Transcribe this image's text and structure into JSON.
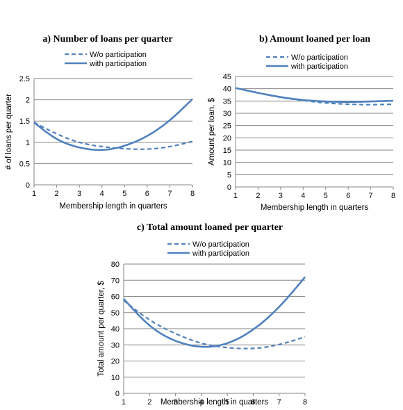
{
  "chart_data": [
    {
      "type": "line",
      "title": "a) Number of loans per quarter",
      "xlabel": "Membership length in quarters",
      "ylabel": "# of loans per quarter",
      "xlim": [
        1,
        8
      ],
      "ylim": [
        0,
        2.5
      ],
      "yticks": [
        "0",
        "0.5",
        "1",
        "1.5",
        "2",
        "2.5"
      ],
      "xticks": [
        "1",
        "2",
        "3",
        "4",
        "5",
        "6",
        "7",
        "8"
      ],
      "grid": true,
      "legend_position": "top",
      "color": "#4f81bd",
      "x": [
        1,
        2,
        3,
        4,
        5,
        6,
        7,
        8
      ],
      "series": [
        {
          "name": "W/o participation",
          "style": "dashed",
          "values": [
            1.47,
            1.2,
            1.0,
            0.9,
            0.85,
            0.84,
            0.9,
            1.02
          ]
        },
        {
          "name": "with participation",
          "style": "solid",
          "values": [
            1.47,
            1.08,
            0.88,
            0.82,
            0.92,
            1.15,
            1.52,
            2.02
          ]
        }
      ]
    },
    {
      "type": "line",
      "title": "b) Amount loaned per loan",
      "xlabel": "Membership length in quarters",
      "ylabel": "Amount per loan, $",
      "xlim": [
        1,
        8
      ],
      "ylim": [
        0,
        45
      ],
      "yticks": [
        "0",
        "5",
        "10",
        "15",
        "20",
        "25",
        "30",
        "35",
        "40",
        "45"
      ],
      "xticks": [
        "1",
        "2",
        "3",
        "4",
        "5",
        "6",
        "7",
        "8"
      ],
      "grid": true,
      "legend_position": "top",
      "color": "#4f81bd",
      "x": [
        1,
        2,
        3,
        4,
        5,
        6,
        7,
        8
      ],
      "series": [
        {
          "name": "W/o participation",
          "style": "dashed",
          "values": [
            40.3,
            38.3,
            36.5,
            35.2,
            34.2,
            33.7,
            33.5,
            33.7
          ]
        },
        {
          "name": "with participation",
          "style": "solid",
          "values": [
            40.3,
            38.3,
            36.6,
            35.4,
            34.8,
            34.6,
            34.8,
            35.1
          ]
        }
      ]
    },
    {
      "type": "line",
      "title": "c) Total amount loaned per quarter",
      "xlabel": "Membership length in quarters",
      "ylabel": "Total amount per quarter, $",
      "xlim": [
        1,
        8
      ],
      "ylim": [
        0,
        80
      ],
      "yticks": [
        "0",
        "10",
        "20",
        "30",
        "40",
        "50",
        "60",
        "70",
        "80"
      ],
      "xticks": [
        "1",
        "2",
        "3",
        "4",
        "5",
        "6",
        "7",
        "8"
      ],
      "grid": true,
      "legend_position": "top",
      "color": "#4f81bd",
      "x": [
        1,
        2,
        3,
        4,
        5,
        6,
        7,
        8
      ],
      "series": [
        {
          "name": "W/o participation",
          "style": "dashed",
          "values": [
            57.5,
            45.5,
            37.0,
            31.0,
            28.3,
            27.8,
            30.2,
            35.0
          ]
        },
        {
          "name": "with participation",
          "style": "solid",
          "values": [
            58.5,
            42.0,
            32.5,
            28.8,
            31.0,
            39.5,
            53.5,
            72.0
          ]
        }
      ]
    }
  ]
}
